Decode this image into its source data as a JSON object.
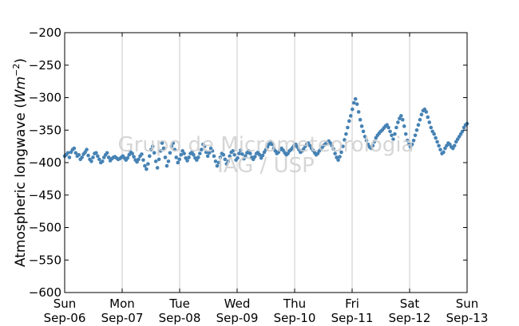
{
  "chart_data": {
    "type": "scatter",
    "title": "",
    "xlabel": "",
    "ylabel_text": "Atmospheric longwave (",
    "ylabel_unit": "Wm",
    "ylabel_exp": "−2",
    "ylabel_close": ")",
    "ylim": [
      -600,
      -200
    ],
    "yticks": [
      -200,
      -250,
      -300,
      -350,
      -400,
      -450,
      -500,
      -550,
      -600
    ],
    "ytick_labels": [
      "−200",
      "−250",
      "−300",
      "−350",
      "−400",
      "−450",
      "−500",
      "−550",
      "−600"
    ],
    "xlim_days": [
      0,
      7
    ],
    "xticks": [
      {
        "day": "Sun",
        "date": "Sep-06"
      },
      {
        "day": "Mon",
        "date": "Sep-07"
      },
      {
        "day": "Tue",
        "date": "Sep-08"
      },
      {
        "day": "Wed",
        "date": "Sep-09"
      },
      {
        "day": "Thu",
        "date": "Sep-10"
      },
      {
        "day": "Fri",
        "date": "Sep-11"
      },
      {
        "day": "Sat",
        "date": "Sep-12"
      },
      {
        "day": "Sun",
        "date": "Sep-13"
      }
    ],
    "grid": "vertical",
    "series": [
      {
        "marker_color": "#4682b4",
        "x_start": "Sep-06",
        "x_end": "Sep-13",
        "values": [
          -390,
          -388,
          -385,
          -392,
          -384,
          -380,
          -378,
          -385,
          -390,
          -388,
          -395,
          -392,
          -387,
          -384,
          -380,
          -389,
          -395,
          -398,
          -392,
          -386,
          -385,
          -390,
          -395,
          -400,
          -398,
          -392,
          -388,
          -385,
          -392,
          -397,
          -394,
          -392,
          -391,
          -393,
          -395,
          -394,
          -392,
          -390,
          -393,
          -396,
          -393,
          -388,
          -384,
          -386,
          -391,
          -396,
          -399,
          -395,
          -390,
          -387,
          -396,
          -405,
          -410,
          -402,
          -390,
          -380,
          -375,
          -385,
          -398,
          -408,
          -395,
          -382,
          -370,
          -378,
          -392,
          -405,
          -398,
          -385,
          -375,
          -370,
          -380,
          -392,
          -400,
          -395,
          -388,
          -382,
          -386,
          -393,
          -397,
          -392,
          -386,
          -384,
          -388,
          -393,
          -396,
          -392,
          -386,
          -380,
          -372,
          -375,
          -384,
          -390,
          -385,
          -378,
          -382,
          -390,
          -398,
          -405,
          -400,
          -392,
          -386,
          -388,
          -395,
          -402,
          -398,
          -390,
          -384,
          -382,
          -388,
          -396,
          -393,
          -386,
          -381,
          -387,
          -394,
          -390,
          -385,
          -382,
          -386,
          -392,
          -395,
          -391,
          -386,
          -384,
          -388,
          -393,
          -389,
          -384,
          -380,
          -376,
          -372,
          -368,
          -372,
          -378,
          -382,
          -386,
          -384,
          -380,
          -378,
          -381,
          -385,
          -388,
          -386,
          -382,
          -380,
          -377,
          -374,
          -372,
          -376,
          -380,
          -384,
          -382,
          -379,
          -375,
          -372,
          -370,
          -374,
          -378,
          -381,
          -385,
          -388,
          -386,
          -382,
          -379,
          -376,
          -373,
          -371,
          -369,
          -367,
          -370,
          -374,
          -379,
          -386,
          -392,
          -396,
          -391,
          -384,
          -375,
          -365,
          -356,
          -346,
          -336,
          -328,
          -318,
          -308,
          -302,
          -310,
          -322,
          -334,
          -344,
          -352,
          -360,
          -366,
          -372,
          -376,
          -378,
          -374,
          -368,
          -362,
          -358,
          -355,
          -352,
          -350,
          -347,
          -344,
          -342,
          -346,
          -352,
          -358,
          -364,
          -356,
          -346,
          -338,
          -332,
          -328,
          -334,
          -344,
          -356,
          -366,
          -372,
          -376,
          -372,
          -366,
          -358,
          -350,
          -342,
          -334,
          -326,
          -320,
          -318,
          -322,
          -330,
          -338,
          -346,
          -352,
          -356,
          -362,
          -368,
          -374,
          -380,
          -386,
          -384,
          -378,
          -374,
          -370,
          -372,
          -376,
          -378,
          -374,
          -368,
          -364,
          -360,
          -356,
          -352,
          -346,
          -342,
          -340
        ]
      }
    ]
  },
  "watermark": {
    "line1": "Grupo de Micrometeorologia",
    "line2": "IAG / USP"
  }
}
